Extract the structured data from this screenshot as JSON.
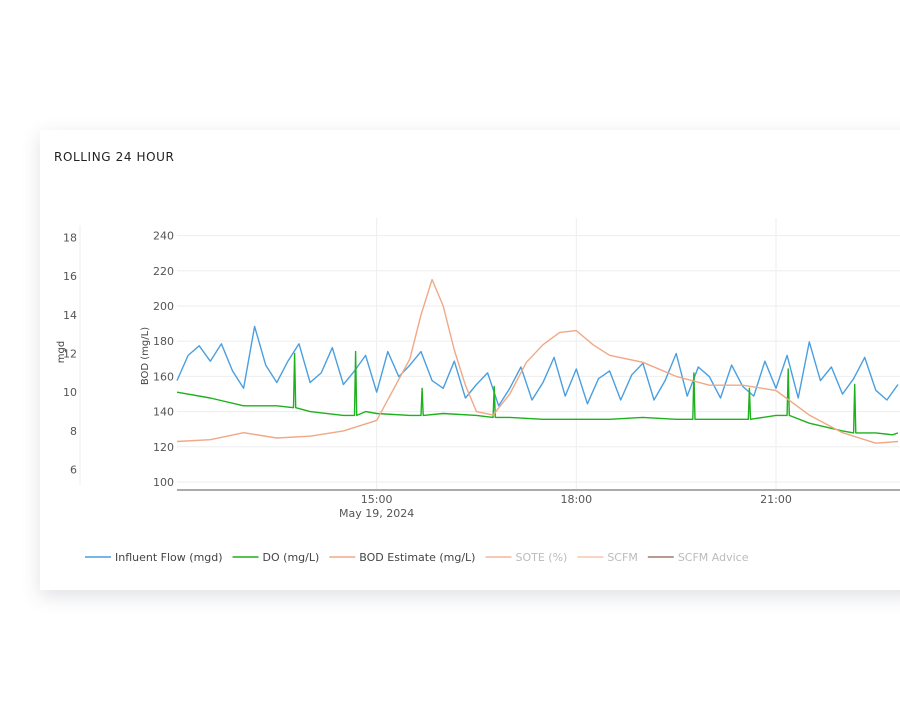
{
  "card": {
    "title": "ROLLING 24 HOUR"
  },
  "chart_data": {
    "type": "line",
    "title": "ROLLING 24 HOUR",
    "x_range": [
      "2024-05-19 12:00",
      "2024-05-19 22:50"
    ],
    "x_ticks": [
      {
        "time": "2024-05-19 15:00",
        "label": "15:00",
        "sublabel": "May 19, 2024"
      },
      {
        "time": "2024-05-19 18:00",
        "label": "18:00",
        "sublabel": ""
      },
      {
        "time": "2024-05-19 21:00",
        "label": "21:00",
        "sublabel": ""
      }
    ],
    "y_left": {
      "label": "mgd",
      "range": [
        5,
        19
      ],
      "ticks": [
        6,
        8,
        10,
        12,
        14,
        16,
        18
      ]
    },
    "y_right": {
      "label": "BOD (mg/L)",
      "range": [
        96,
        250
      ],
      "ticks": [
        100,
        120,
        140,
        160,
        180,
        200,
        220,
        240
      ]
    },
    "grid": true,
    "legend_position": "bottom",
    "series": [
      {
        "name": "Influent Flow (mgd)",
        "axis": "left",
        "color": "#4a9fe0",
        "visible": true,
        "x": [
          "12:00",
          "12:10",
          "12:20",
          "12:30",
          "12:40",
          "12:50",
          "13:00",
          "13:10",
          "13:20",
          "13:30",
          "13:40",
          "13:50",
          "14:00",
          "14:10",
          "14:20",
          "14:30",
          "14:40",
          "14:50",
          "15:00",
          "15:10",
          "15:20",
          "15:30",
          "15:40",
          "15:50",
          "16:00",
          "16:10",
          "16:20",
          "16:30",
          "16:40",
          "16:50",
          "17:00",
          "17:10",
          "17:20",
          "17:30",
          "17:40",
          "17:50",
          "18:00",
          "18:10",
          "18:20",
          "18:30",
          "18:40",
          "18:50",
          "19:00",
          "19:10",
          "19:20",
          "19:30",
          "19:40",
          "19:50",
          "20:00",
          "20:10",
          "20:20",
          "20:30",
          "20:40",
          "20:50",
          "21:00",
          "21:10",
          "21:20",
          "21:30",
          "21:40",
          "21:50",
          "22:00",
          "22:10",
          "22:20",
          "22:30",
          "22:40",
          "22:50"
        ],
        "values": [
          10.6,
          11.9,
          12.4,
          11.6,
          12.5,
          11.1,
          10.2,
          13.4,
          11.4,
          10.5,
          11.6,
          12.5,
          10.5,
          11.0,
          12.3,
          10.4,
          11.1,
          11.9,
          10.0,
          12.1,
          10.8,
          11.4,
          12.1,
          10.6,
          10.2,
          11.6,
          9.7,
          10.4,
          11.0,
          9.3,
          10.2,
          11.3,
          9.6,
          10.5,
          11.8,
          9.8,
          11.2,
          9.4,
          10.7,
          11.1,
          9.6,
          10.9,
          11.5,
          9.6,
          10.6,
          12.0,
          9.8,
          11.3,
          10.8,
          9.7,
          11.4,
          10.3,
          9.8,
          11.6,
          10.2,
          11.9,
          9.7,
          12.6,
          10.6,
          11.3,
          9.9,
          10.7,
          11.8,
          10.1,
          9.6,
          10.4
        ]
      },
      {
        "name": "DO (mg/L)",
        "axis": "left",
        "color": "#1db11d",
        "visible": true,
        "x": [
          "12:00",
          "12:30",
          "13:00",
          "13:30",
          "13:45",
          "13:46",
          "13:47",
          "14:00",
          "14:30",
          "14:40",
          "14:41",
          "14:42",
          "14:50",
          "15:00",
          "15:30",
          "15:40",
          "15:41",
          "15:42",
          "16:00",
          "16:30",
          "16:45",
          "16:46",
          "16:47",
          "17:00",
          "17:30",
          "18:00",
          "18:30",
          "19:00",
          "19:30",
          "19:45",
          "19:46",
          "19:47",
          "20:00",
          "20:30",
          "20:35",
          "20:36",
          "20:37",
          "21:00",
          "21:10",
          "21:11",
          "21:12",
          "21:30",
          "22:00",
          "22:10",
          "22:11",
          "22:12",
          "22:30",
          "22:45",
          "22:50"
        ],
        "values": [
          10.0,
          9.7,
          9.3,
          9.3,
          9.2,
          12.0,
          9.2,
          9.0,
          8.8,
          8.8,
          12.1,
          8.8,
          9.0,
          8.9,
          8.8,
          8.8,
          10.2,
          8.8,
          8.9,
          8.8,
          8.7,
          10.3,
          8.7,
          8.7,
          8.6,
          8.6,
          8.6,
          8.7,
          8.6,
          8.6,
          11.0,
          8.6,
          8.6,
          8.6,
          8.6,
          10.2,
          8.6,
          8.8,
          8.8,
          11.2,
          8.8,
          8.4,
          8.0,
          7.9,
          10.4,
          7.9,
          7.9,
          7.8,
          7.9
        ]
      },
      {
        "name": "BOD Estimate (mg/L)",
        "axis": "right",
        "color": "#f0a886",
        "visible": true,
        "x": [
          "12:00",
          "12:30",
          "13:00",
          "13:30",
          "14:00",
          "14:30",
          "15:00",
          "15:30",
          "15:40",
          "15:50",
          "16:00",
          "16:10",
          "16:20",
          "16:30",
          "16:45",
          "17:00",
          "17:15",
          "17:30",
          "17:45",
          "18:00",
          "18:15",
          "18:30",
          "19:00",
          "19:30",
          "20:00",
          "20:30",
          "21:00",
          "21:30",
          "22:00",
          "22:30",
          "22:50"
        ],
        "values": [
          123,
          124,
          128,
          125,
          126,
          129,
          135,
          170,
          195,
          215,
          200,
          175,
          155,
          140,
          138,
          150,
          168,
          178,
          185,
          186,
          178,
          172,
          168,
          160,
          155,
          155,
          152,
          138,
          128,
          122,
          123
        ]
      },
      {
        "name": "SOTE (%)",
        "axis": "left",
        "color": "#f4b79a",
        "visible": false,
        "x": [],
        "values": []
      },
      {
        "name": "SCFM",
        "axis": "left",
        "color": "#f6c7ae",
        "visible": false,
        "x": [],
        "values": []
      },
      {
        "name": "SCFM Advice",
        "axis": "left",
        "color": "#a0786a",
        "visible": false,
        "x": [],
        "values": []
      }
    ]
  }
}
